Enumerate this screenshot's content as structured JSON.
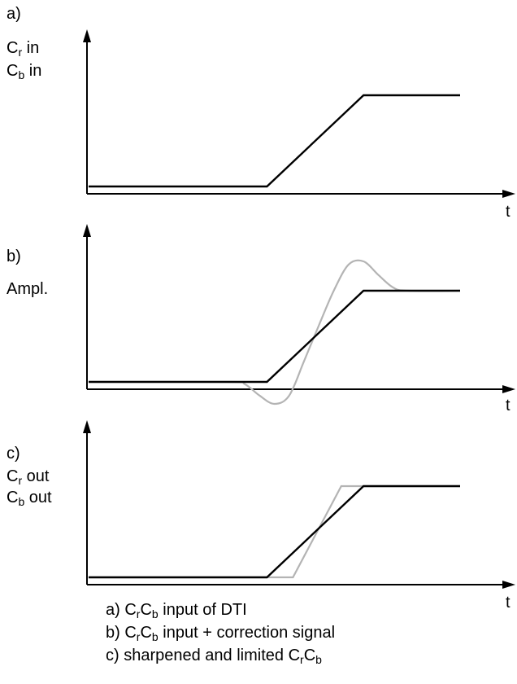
{
  "panels": [
    {
      "id": "a",
      "letter": "a)",
      "ylabel": [
        {
          "main": "C",
          "sub": "r",
          "rest": " in"
        },
        {
          "main": "C",
          "sub": "b",
          "rest": " in"
        }
      ],
      "xlabel": "t",
      "signals": [
        {
          "role": "input",
          "color": "#000000",
          "points": [
            [
              0,
              0.08
            ],
            [
              0.48,
              0.08
            ],
            [
              0.74,
              0.95
            ],
            [
              1.0,
              0.95
            ]
          ]
        }
      ]
    },
    {
      "id": "b",
      "letter": "b)",
      "ylabel": [
        {
          "main": "Ampl.",
          "sub": "",
          "rest": ""
        }
      ],
      "xlabel": "t",
      "signals": [
        {
          "role": "input",
          "color": "#000000",
          "points": [
            [
              0,
              0.08
            ],
            [
              0.48,
              0.08
            ],
            [
              0.74,
              0.95
            ],
            [
              1.0,
              0.95
            ]
          ]
        },
        {
          "role": "correction",
          "color": "#b4b4b4",
          "points": [
            [
              0,
              0.08
            ],
            [
              0.38,
              0.08
            ],
            [
              0.42,
              0.06
            ],
            [
              0.46,
              -0.05
            ],
            [
              0.5,
              -0.13
            ],
            [
              0.54,
              -0.05
            ],
            [
              0.58,
              0.28
            ],
            [
              0.62,
              0.62
            ],
            [
              0.66,
              0.95
            ],
            [
              0.7,
              1.2
            ],
            [
              0.74,
              1.23
            ],
            [
              0.78,
              1.1
            ],
            [
              0.82,
              0.98
            ],
            [
              0.86,
              0.95
            ],
            [
              1.0,
              0.95
            ]
          ]
        }
      ]
    },
    {
      "id": "c",
      "letter": "c)",
      "ylabel": [
        {
          "main": "C",
          "sub": "r",
          "rest": " out"
        },
        {
          "main": "C",
          "sub": "b",
          "rest": " out"
        }
      ],
      "xlabel": "t",
      "signals": [
        {
          "role": "input",
          "color": "#000000",
          "points": [
            [
              0,
              0.08
            ],
            [
              0.48,
              0.08
            ],
            [
              0.74,
              0.95
            ],
            [
              1.0,
              0.95
            ]
          ]
        },
        {
          "role": "sharpened",
          "color": "#b4b4b4",
          "points": [
            [
              0,
              0.08
            ],
            [
              0.55,
              0.08
            ],
            [
              0.68,
              0.95
            ],
            [
              1.0,
              0.95
            ]
          ]
        }
      ]
    }
  ],
  "caption": [
    {
      "prefix": "a) ",
      "parts": [
        [
          "C",
          "r"
        ],
        [
          "C",
          "b"
        ]
      ],
      "suffix": " input of DTI"
    },
    {
      "prefix": "b) ",
      "parts": [
        [
          "C",
          "r"
        ],
        [
          "C",
          "b"
        ]
      ],
      "suffix": " input + correction signal"
    },
    {
      "prefix": "c) sharpened and limited ",
      "parts": [
        [
          "C",
          "r"
        ],
        [
          "C",
          "b"
        ]
      ],
      "suffix": ""
    }
  ]
}
